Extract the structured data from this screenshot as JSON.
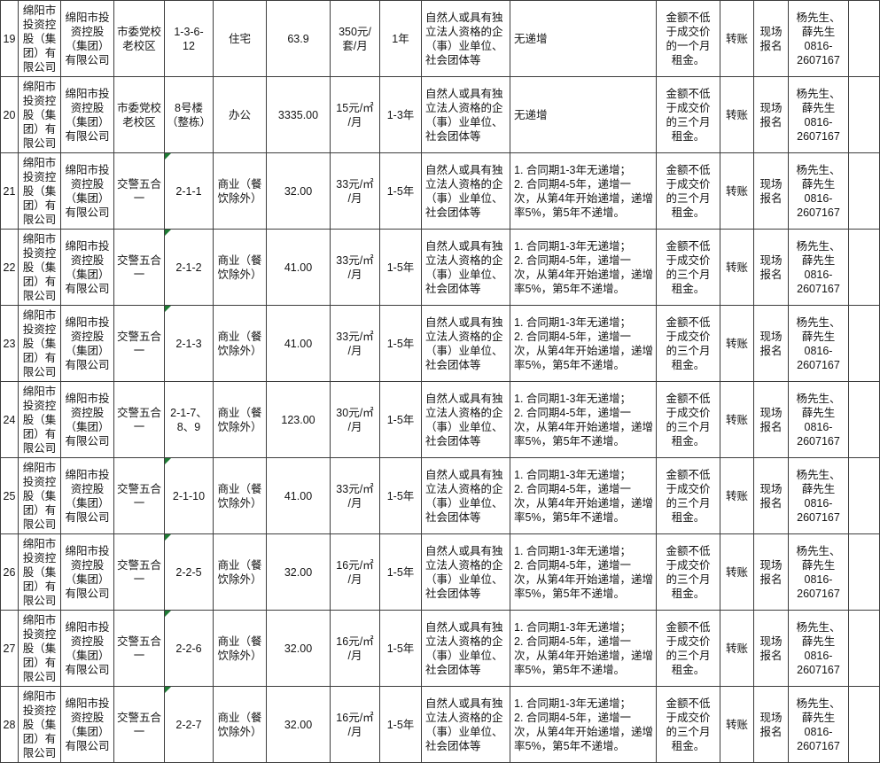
{
  "table": {
    "columns": [
      {
        "key": "no",
        "name": "row-number"
      },
      {
        "key": "lessor",
        "name": "lessor-company"
      },
      {
        "key": "agent",
        "name": "operating-company"
      },
      {
        "key": "location",
        "name": "asset-location"
      },
      {
        "key": "unit",
        "name": "unit-number"
      },
      {
        "key": "use",
        "name": "usage-type"
      },
      {
        "key": "area",
        "name": "area-sqm"
      },
      {
        "key": "price",
        "name": "rent-price"
      },
      {
        "key": "term",
        "name": "lease-term"
      },
      {
        "key": "qualification",
        "name": "tenant-qualification"
      },
      {
        "key": "escalation",
        "name": "rent-escalation"
      },
      {
        "key": "deposit",
        "name": "deposit-requirement"
      },
      {
        "key": "payment",
        "name": "payment-method"
      },
      {
        "key": "registration",
        "name": "registration-method"
      },
      {
        "key": "contact",
        "name": "contact-info"
      },
      {
        "key": "remark",
        "name": "remark"
      }
    ],
    "rows": [
      {
        "no": "19",
        "lessor": "绵阳市\n投资控\n股（集\n团）有\n限公司",
        "agent": "绵阳市投\n资控股\n（集团）\n有限公司",
        "location": "市委党校\n老校区",
        "unit": "1-3-6-\n12",
        "unit_text_indicator": false,
        "use": "住宅",
        "area": "63.9",
        "price": "350元/\n套/月",
        "term": "1年",
        "qualification": "自然人或具有独\n立法人资格的企\n（事）业单位、\n社会团体等",
        "escalation": "无递增",
        "deposit": "金额不低\n于成交价\n的一个月\n租金。",
        "payment": "转账",
        "registration": "现场\n报名",
        "contact": "杨先生、\n薛先生\n0816-\n2607167",
        "remark": ""
      },
      {
        "no": "20",
        "lessor": "绵阳市\n投资控\n股（集\n团）有\n限公司",
        "agent": "绵阳市投\n资控股\n（集团）\n有限公司",
        "location": "市委党校\n老校区",
        "unit": "8号楼\n（整栋）",
        "unit_text_indicator": false,
        "use": "办公",
        "area": "3335.00",
        "price": "15元/㎡\n/月",
        "term": "1-3年",
        "qualification": "自然人或具有独\n立法人资格的企\n（事）业单位、\n社会团体等",
        "escalation": "无递增",
        "deposit": "金额不低\n于成交价\n的三个月\n租金。",
        "payment": "转账",
        "registration": "现场\n报名",
        "contact": "杨先生、\n薛先生\n0816-\n2607167",
        "remark": ""
      },
      {
        "no": "21",
        "lessor": "绵阳市\n投资控\n股（集\n团）有\n限公司",
        "agent": "绵阳市投\n资控股\n（集团）\n有限公司",
        "location": "交警五合\n一",
        "unit": "2-1-1",
        "unit_text_indicator": true,
        "use": "商业（餐\n饮除外）",
        "area": "32.00",
        "price": "33元/㎡\n/月",
        "term": "1-5年",
        "qualification": "自然人或具有独\n立法人资格的企\n（事）业单位、\n社会团体等",
        "escalation": "1. 合同期1-3年无递增；\n2. 合同期4-5年，递增一\n次，从第4年开始递增，递增\n率5%，第5年不递增。",
        "deposit": "金额不低\n于成交价\n的三个月\n租金。",
        "payment": "转账",
        "registration": "现场\n报名",
        "contact": "杨先生、\n薛先生\n0816-\n2607167",
        "remark": ""
      },
      {
        "no": "22",
        "lessor": "绵阳市\n投资控\n股（集\n团）有\n限公司",
        "agent": "绵阳市投\n资控股\n（集团）\n有限公司",
        "location": "交警五合\n一",
        "unit": "2-1-2",
        "unit_text_indicator": true,
        "use": "商业（餐\n饮除外）",
        "area": "41.00",
        "price": "33元/㎡\n/月",
        "term": "1-5年",
        "qualification": "自然人或具有独\n立法人资格的企\n（事）业单位、\n社会团体等",
        "escalation": "1. 合同期1-3年无递增；\n2. 合同期4-5年，递增一\n次，从第4年开始递增，递增\n率5%，第5年不递增。",
        "deposit": "金额不低\n于成交价\n的三个月\n租金。",
        "payment": "转账",
        "registration": "现场\n报名",
        "contact": "杨先生、\n薛先生\n0816-\n2607167",
        "remark": ""
      },
      {
        "no": "23",
        "lessor": "绵阳市\n投资控\n股（集\n团）有\n限公司",
        "agent": "绵阳市投\n资控股\n（集团）\n有限公司",
        "location": "交警五合\n一",
        "unit": "2-1-3",
        "unit_text_indicator": true,
        "use": "商业（餐\n饮除外）",
        "area": "41.00",
        "price": "33元/㎡\n/月",
        "term": "1-5年",
        "qualification": "自然人或具有独\n立法人资格的企\n（事）业单位、\n社会团体等",
        "escalation": "1. 合同期1-3年无递增；\n2. 合同期4-5年，递增一\n次，从第4年开始递增，递增\n率5%，第5年不递增。",
        "deposit": "金额不低\n于成交价\n的三个月\n租金。",
        "payment": "转账",
        "registration": "现场\n报名",
        "contact": "杨先生、\n薛先生\n0816-\n2607167",
        "remark": ""
      },
      {
        "no": "24",
        "lessor": "绵阳市\n投资控\n股（集\n团）有\n限公司",
        "agent": "绵阳市投\n资控股\n（集团）\n有限公司",
        "location": "交警五合\n一",
        "unit": "2-1-7、\n8、9",
        "unit_text_indicator": false,
        "use": "商业（餐\n饮除外）",
        "area": "123.00",
        "price": "30元/㎡\n/月",
        "term": "1-5年",
        "qualification": "自然人或具有独\n立法人资格的企\n（事）业单位、\n社会团体等",
        "escalation": "1. 合同期1-3年无递增；\n2. 合同期4-5年，递增一\n次，从第4年开始递增，递增\n率5%，第5年不递增。",
        "deposit": "金额不低\n于成交价\n的三个月\n租金。",
        "payment": "转账",
        "registration": "现场\n报名",
        "contact": "杨先生、\n薛先生\n0816-\n2607167",
        "remark": ""
      },
      {
        "no": "25",
        "lessor": "绵阳市\n投资控\n股（集\n团）有\n限公司",
        "agent": "绵阳市投\n资控股\n（集团）\n有限公司",
        "location": "交警五合\n一",
        "unit": "2-1-10",
        "unit_text_indicator": true,
        "use": "商业（餐\n饮除外）",
        "area": "41.00",
        "price": "33元/㎡\n/月",
        "term": "1-5年",
        "qualification": "自然人或具有独\n立法人资格的企\n（事）业单位、\n社会团体等",
        "escalation": "1. 合同期1-3年无递增；\n2. 合同期4-5年，递增一\n次，从第4年开始递增，递增\n率5%，第5年不递增。",
        "deposit": "金额不低\n于成交价\n的三个月\n租金。",
        "payment": "转账",
        "registration": "现场\n报名",
        "contact": "杨先生、\n薛先生\n0816-\n2607167",
        "remark": ""
      },
      {
        "no": "26",
        "lessor": "绵阳市\n投资控\n股（集\n团）有\n限公司",
        "agent": "绵阳市投\n资控股\n（集团）\n有限公司",
        "location": "交警五合\n一",
        "unit": "2-2-5",
        "unit_text_indicator": true,
        "use": "商业（餐\n饮除外）",
        "area": "32.00",
        "price": "16元/㎡\n/月",
        "term": "1-5年",
        "qualification": "自然人或具有独\n立法人资格的企\n（事）业单位、\n社会团体等",
        "escalation": "1. 合同期1-3年无递增；\n2. 合同期4-5年，递增一\n次，从第4年开始递增，递增\n率5%，第5年不递增。",
        "deposit": "金额不低\n于成交价\n的三个月\n租金。",
        "payment": "转账",
        "registration": "现场\n报名",
        "contact": "杨先生、\n薛先生\n0816-\n2607167",
        "remark": ""
      },
      {
        "no": "27",
        "lessor": "绵阳市\n投资控\n股（集\n团）有\n限公司",
        "agent": "绵阳市投\n资控股\n（集团）\n有限公司",
        "location": "交警五合\n一",
        "unit": "2-2-6",
        "unit_text_indicator": true,
        "use": "商业（餐\n饮除外）",
        "area": "32.00",
        "price": "16元/㎡\n/月",
        "term": "1-5年",
        "qualification": "自然人或具有独\n立法人资格的企\n（事）业单位、\n社会团体等",
        "escalation": "1. 合同期1-3年无递增；\n2. 合同期4-5年，递增一\n次，从第4年开始递增，递增\n率5%，第5年不递增。",
        "deposit": "金额不低\n于成交价\n的三个月\n租金。",
        "payment": "转账",
        "registration": "现场\n报名",
        "contact": "杨先生、\n薛先生\n0816-\n2607167",
        "remark": ""
      },
      {
        "no": "28",
        "lessor": "绵阳市\n投资控\n股（集\n团）有\n限公司",
        "agent": "绵阳市投\n资控股\n（集团）\n有限公司",
        "location": "交警五合\n一",
        "unit": "2-2-7",
        "unit_text_indicator": true,
        "use": "商业（餐\n饮除外）",
        "area": "32.00",
        "price": "16元/㎡\n/月",
        "term": "1-5年",
        "qualification": "自然人或具有独\n立法人资格的企\n（事）业单位、\n社会团体等",
        "escalation": "1. 合同期1-3年无递增；\n2. 合同期4-5年，递增一\n次，从第4年开始递增，递增\n率5%，第5年不递增。",
        "deposit": "金额不低\n于成交价\n的三个月\n租金。",
        "payment": "转账",
        "registration": "现场\n报名",
        "contact": "杨先生、\n薛先生\n0816-\n2607167",
        "remark": ""
      }
    ]
  },
  "colors": {
    "border": "#3d3d3d",
    "text": "#141414",
    "background": "#ffffff",
    "text_format_indicator_green": "#1e7b34"
  }
}
